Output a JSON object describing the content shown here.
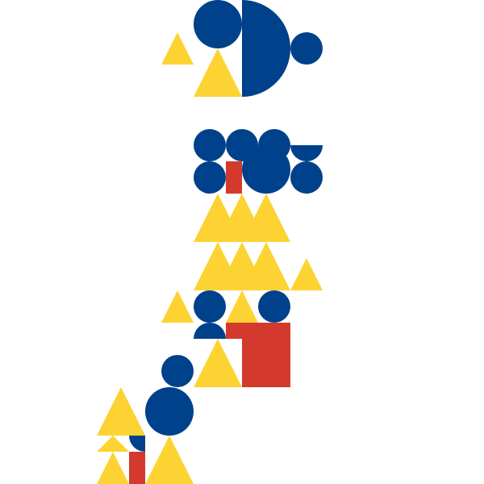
{
  "palette": {
    "background": "#ffffff",
    "blue": "#00418b",
    "yellow": "#fdd333",
    "red": "#d33a2d"
  },
  "composition": {
    "shape_kinds": [
      "circle",
      "half-disc",
      "quarter-disc",
      "triangle",
      "square",
      "rectangle"
    ]
  }
}
